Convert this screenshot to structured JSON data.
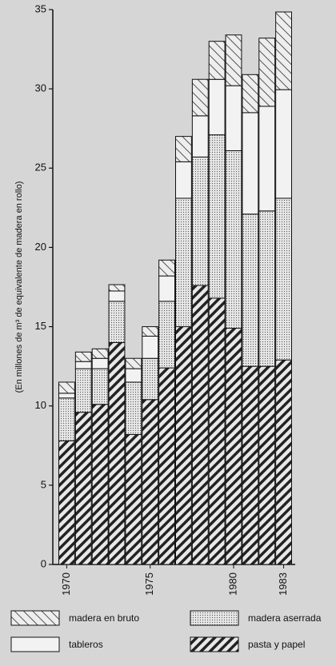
{
  "chart_data": {
    "type": "stacked-bar",
    "y_label": "(En millones de m³ de equivalente de madera en rollo)",
    "categories": [
      "1970",
      null,
      null,
      null,
      null,
      "1975",
      null,
      null,
      null,
      null,
      "1980",
      null,
      null,
      "1983"
    ],
    "series": [
      {
        "name": "pasta y papel",
        "color": "#222222",
        "values": [
          7.8,
          9.6,
          10.1,
          14.0,
          8.2,
          10.4,
          12.4,
          15.0,
          17.6,
          16.8,
          14.9,
          12.5,
          12.5,
          12.9
        ]
      },
      {
        "name": "madera aserrada",
        "color": "#555555",
        "values": [
          2.7,
          2.75,
          2.25,
          2.6,
          3.3,
          2.6,
          4.2,
          8.1,
          8.1,
          10.3,
          11.2,
          9.6,
          9.8,
          10.2
        ]
      },
      {
        "name": "tableros",
        "color": "#f2f2f2",
        "values": [
          0.3,
          0.45,
          0.65,
          0.65,
          0.85,
          1.4,
          1.6,
          2.3,
          2.6,
          3.5,
          4.1,
          6.4,
          6.6,
          6.85
        ]
      },
      {
        "name": "madera en bruto",
        "color": "#444444",
        "values": [
          0.7,
          0.6,
          0.6,
          0.4,
          0.65,
          0.6,
          1.0,
          1.6,
          2.3,
          2.4,
          3.2,
          2.4,
          4.3,
          4.9
        ]
      }
    ],
    "ylim": [
      0,
      35
    ],
    "yticks": [
      0,
      5,
      10,
      15,
      20,
      25,
      30,
      35
    ]
  }
}
